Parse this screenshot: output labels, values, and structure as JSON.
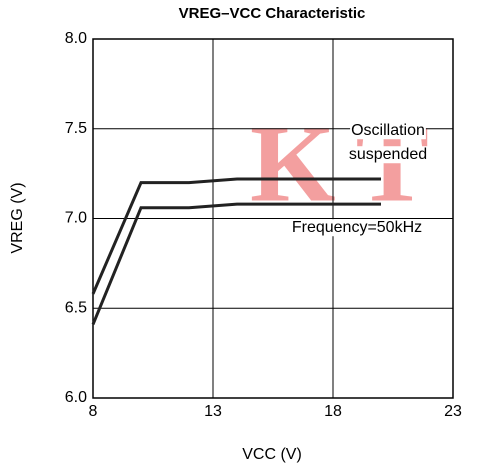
{
  "chart_data": {
    "type": "line",
    "title": "VREG–VCC Characteristic",
    "xlabel": "VCC (V)",
    "ylabel": "VREG (V)",
    "watermark": "KT",
    "x": [
      8,
      10,
      12,
      14,
      20
    ],
    "series": [
      {
        "color": "#222222",
        "values": [
          6.58,
          7.2,
          7.2,
          7.22,
          7.22
        ]
      },
      {
        "color": "#222222",
        "values": [
          6.41,
          7.06,
          7.06,
          7.08,
          7.08
        ]
      }
    ],
    "annotations": [
      "Oscillation",
      "suspended",
      "Frequency=50kHz"
    ],
    "xlim": [
      8,
      23
    ],
    "xticks": [
      8,
      13,
      18,
      23
    ],
    "ylim": [
      6.0,
      8.0
    ],
    "yticks": [
      {
        "value": 6.0,
        "label": "6.0"
      },
      {
        "value": 6.5,
        "label": "6.5"
      },
      {
        "value": 7.0,
        "label": "7.0"
      },
      {
        "value": 7.5,
        "label": "7.5"
      },
      {
        "value": 8.0,
        "label": "8.0"
      }
    ],
    "grid": true
  }
}
